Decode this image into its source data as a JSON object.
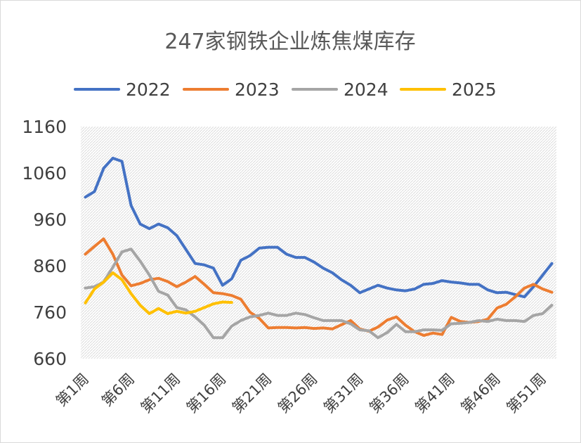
{
  "chart_data": {
    "type": "line",
    "title": "247家钢铁企业炼焦煤库存",
    "xlabel": "",
    "ylabel": "",
    "ylim": [
      660,
      1160
    ],
    "yticks": [
      660,
      760,
      860,
      960,
      1060,
      1160
    ],
    "x_count": 52,
    "xtick_labels": [
      "第1周",
      "第6周",
      "第11周",
      "第16周",
      "第21周",
      "第26周",
      "第31周",
      "第36周",
      "第41周",
      "第46周",
      "第51周"
    ],
    "xtick_indices": [
      1,
      6,
      11,
      16,
      21,
      26,
      31,
      36,
      41,
      46,
      51
    ],
    "legend_position": "top",
    "plot_background": "hatched-gray",
    "series": [
      {
        "name": "2022",
        "color": "#4472C4",
        "start_week": 1,
        "values": [
          1008,
          1020,
          1070,
          1092,
          1085,
          990,
          950,
          940,
          950,
          942,
          925,
          895,
          865,
          862,
          855,
          818,
          832,
          872,
          882,
          898,
          900,
          900,
          885,
          878,
          878,
          868,
          855,
          845,
          830,
          818,
          802,
          810,
          818,
          812,
          808,
          806,
          810,
          820,
          822,
          828,
          825,
          823,
          820,
          820,
          808,
          802,
          803,
          798,
          793,
          815,
          840,
          865
        ]
      },
      {
        "name": "2023",
        "color": "#ED7D31",
        "start_week": 1,
        "values": [
          885,
          902,
          918,
          885,
          840,
          817,
          822,
          830,
          833,
          826,
          815,
          825,
          837,
          820,
          802,
          800,
          796,
          788,
          760,
          747,
          726,
          727,
          727,
          726,
          727,
          725,
          726,
          724,
          733,
          742,
          724,
          719,
          728,
          743,
          750,
          732,
          718,
          710,
          715,
          712,
          749,
          740,
          738,
          740,
          745,
          769,
          777,
          793,
          812,
          820,
          810,
          803
        ]
      },
      {
        "name": "2024",
        "color": "#A5A5A5",
        "start_week": 1,
        "values": [
          812,
          815,
          825,
          857,
          890,
          896,
          870,
          840,
          805,
          797,
          770,
          765,
          750,
          732,
          705,
          705,
          730,
          742,
          750,
          753,
          758,
          753,
          753,
          758,
          755,
          748,
          742,
          742,
          742,
          735,
          722,
          720,
          705,
          716,
          734,
          718,
          718,
          722,
          722,
          721,
          735,
          736,
          738,
          742,
          740,
          745,
          742,
          742,
          740,
          753,
          757,
          775
        ]
      },
      {
        "name": "2025",
        "color": "#FFC000",
        "start_week": 1,
        "values": [
          780,
          810,
          825,
          845,
          830,
          800,
          775,
          757,
          768,
          757,
          762,
          758,
          762,
          770,
          778,
          782,
          781
        ]
      }
    ]
  }
}
